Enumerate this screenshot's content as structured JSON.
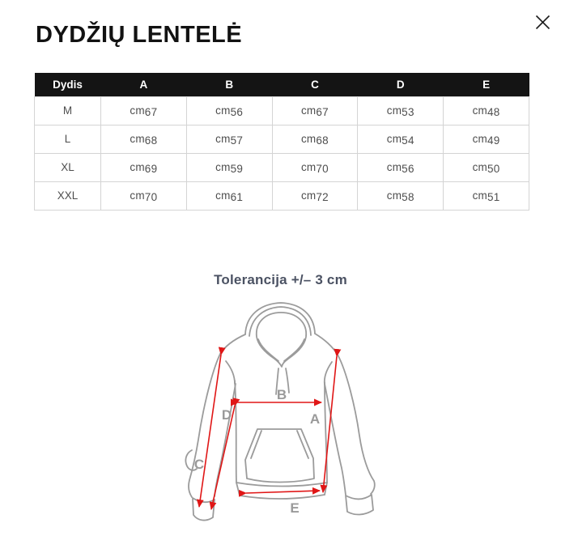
{
  "header": {
    "title": "DYDŽIŲ LENTELĖ",
    "icons": {
      "close": "x-mark"
    }
  },
  "table": {
    "columns": [
      "Dydis",
      "A",
      "B",
      "C",
      "D",
      "E"
    ],
    "unit": "cm",
    "rows": [
      {
        "size": "M",
        "values": [
          "67",
          "56",
          "67",
          "53",
          "48"
        ]
      },
      {
        "size": "L",
        "values": [
          "68",
          "57",
          "68",
          "54",
          "49"
        ]
      },
      {
        "size": "XL",
        "values": [
          "69",
          "59",
          "70",
          "56",
          "50"
        ]
      },
      {
        "size": "XXL",
        "values": [
          "70",
          "61",
          "72",
          "58",
          "51"
        ]
      }
    ]
  },
  "diagram": {
    "tolerance_note": "Tolerancija +/– 3 cm",
    "labels": {
      "A": "A",
      "B": "B",
      "C": "C",
      "D": "D",
      "E": "E"
    },
    "colors": {
      "outline": "#9b9b9b",
      "arrow": "#e01616",
      "label": "#9a9a9a"
    }
  }
}
